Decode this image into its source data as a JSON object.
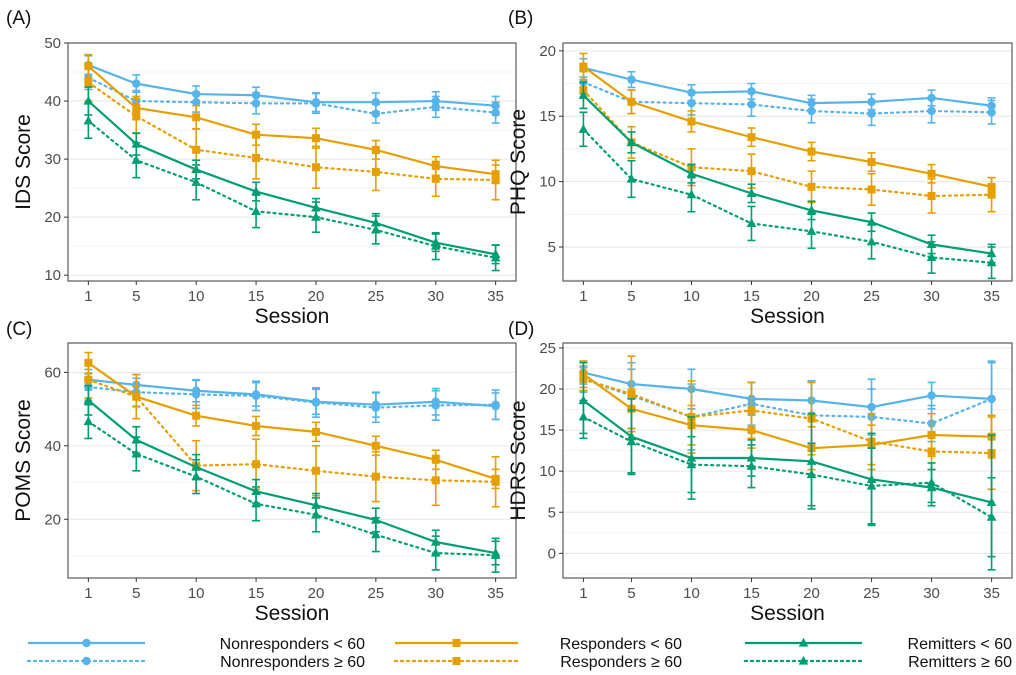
{
  "colors": {
    "Nonresponders": "#56B4E9",
    "Responders": "#E69F00",
    "Remitters": "#009E73"
  },
  "legend": [
    {
      "label": "Nonresponders < 60",
      "group": "Nonresponders",
      "style": "solid",
      "marker": "circle"
    },
    {
      "label": "Nonresponders ≥ 60",
      "group": "Nonresponders",
      "style": "dotted",
      "marker": "circle"
    },
    {
      "label": "Responders < 60",
      "group": "Responders",
      "style": "solid",
      "marker": "square"
    },
    {
      "label": "Responders ≥ 60",
      "group": "Responders",
      "style": "dotted",
      "marker": "square"
    },
    {
      "label": "Remitters < 60",
      "group": "Remitters",
      "style": "solid",
      "marker": "triangle"
    },
    {
      "label": "Remitters ≥ 60",
      "group": "Remitters",
      "style": "dotted",
      "marker": "triangle"
    }
  ],
  "chart_data": [
    {
      "type": "line",
      "panel": "(A)",
      "xlabel": "Session",
      "ylabel": "IDS Score",
      "x": [
        1,
        5,
        10,
        15,
        20,
        25,
        30,
        35
      ],
      "ylim": [
        9,
        50
      ],
      "yticks": [
        10,
        20,
        30,
        40,
        50
      ],
      "grid": true,
      "series": [
        {
          "name": "Nonresponders < 60",
          "values": [
            46.2,
            43.0,
            41.2,
            41.0,
            39.8,
            39.8,
            40.0,
            39.2
          ],
          "err": [
            1.6,
            1.5,
            1.4,
            1.4,
            1.6,
            1.6,
            1.6,
            1.6
          ]
        },
        {
          "name": "Nonresponders ≥ 60",
          "values": [
            44.0,
            40.0,
            39.8,
            39.6,
            39.6,
            37.8,
            39.0,
            38.0
          ],
          "err": [
            2.0,
            1.8,
            1.7,
            1.8,
            1.7,
            1.6,
            1.8,
            1.8
          ]
        },
        {
          "name": "Responders < 60",
          "values": [
            46.0,
            38.8,
            37.2,
            34.2,
            33.6,
            31.6,
            28.8,
            27.4
          ],
          "err": [
            2.0,
            2.0,
            2.0,
            1.8,
            1.7,
            1.6,
            1.6,
            1.6
          ]
        },
        {
          "name": "Responders ≥ 60",
          "values": [
            43.2,
            37.4,
            31.6,
            30.2,
            28.6,
            27.8,
            26.6,
            26.4
          ],
          "err": [
            3.2,
            3.0,
            3.6,
            3.6,
            3.6,
            3.2,
            3.0,
            3.4
          ]
        },
        {
          "name": "Remitters < 60",
          "values": [
            40.0,
            32.6,
            28.2,
            24.4,
            21.6,
            19.0,
            15.6,
            13.6
          ],
          "err": [
            2.4,
            1.9,
            1.6,
            1.6,
            1.6,
            1.6,
            1.5,
            1.6
          ]
        },
        {
          "name": "Remitters ≥ 60",
          "values": [
            36.6,
            29.8,
            26.0,
            21.0,
            20.0,
            17.8,
            15.0,
            13.0
          ],
          "err": [
            3.0,
            3.0,
            3.0,
            2.8,
            2.6,
            2.4,
            2.3,
            2.2
          ]
        }
      ]
    },
    {
      "type": "line",
      "panel": "(B)",
      "xlabel": "Session",
      "ylabel": "PHQ Score",
      "x": [
        1,
        5,
        10,
        15,
        20,
        25,
        30,
        35
      ],
      "ylim": [
        2.4,
        20.6
      ],
      "yticks": [
        5,
        10,
        15,
        20
      ],
      "grid": true,
      "series": [
        {
          "name": "Nonresponders < 60",
          "values": [
            18.7,
            17.8,
            16.8,
            16.9,
            16.0,
            16.1,
            16.4,
            15.8
          ],
          "err": [
            0.7,
            0.6,
            0.6,
            0.6,
            0.6,
            0.6,
            0.6,
            0.6
          ]
        },
        {
          "name": "Nonresponders ≥ 60",
          "values": [
            17.6,
            16.1,
            16.0,
            15.9,
            15.4,
            15.2,
            15.4,
            15.3
          ],
          "err": [
            0.9,
            0.9,
            0.9,
            0.9,
            0.9,
            0.9,
            0.9,
            0.9
          ]
        },
        {
          "name": "Responders < 60",
          "values": [
            18.8,
            16.1,
            14.6,
            13.4,
            12.3,
            11.5,
            10.6,
            9.6
          ],
          "err": [
            1.0,
            0.9,
            0.8,
            0.7,
            0.7,
            0.7,
            0.7,
            0.7
          ]
        },
        {
          "name": "Responders ≥ 60",
          "values": [
            17.0,
            13.0,
            11.1,
            10.8,
            9.6,
            9.4,
            8.9,
            9.0
          ],
          "err": [
            1.4,
            1.2,
            1.4,
            1.3,
            1.2,
            1.2,
            1.3,
            1.3
          ]
        },
        {
          "name": "Remitters < 60",
          "values": [
            16.6,
            13.0,
            10.6,
            9.1,
            7.8,
            6.9,
            5.2,
            4.5
          ],
          "err": [
            1.0,
            0.8,
            0.7,
            0.7,
            0.7,
            0.7,
            0.7,
            0.7
          ]
        },
        {
          "name": "Remitters ≥ 60",
          "values": [
            14.0,
            10.2,
            9.0,
            6.8,
            6.2,
            5.4,
            4.2,
            3.8
          ],
          "err": [
            1.3,
            1.4,
            1.3,
            1.3,
            1.3,
            1.3,
            1.2,
            1.2
          ]
        }
      ]
    },
    {
      "type": "line",
      "panel": "(C)",
      "xlabel": "Session",
      "ylabel": "POMS Score",
      "x": [
        1,
        5,
        10,
        15,
        20,
        25,
        30,
        35
      ],
      "ylim": [
        4,
        68
      ],
      "yticks": [
        20,
        40,
        60
      ],
      "grid": true,
      "series": [
        {
          "name": "Nonresponders < 60",
          "values": [
            58.0,
            56.6,
            55.0,
            54.0,
            52.0,
            51.2,
            52.0,
            50.8
          ],
          "err": [
            2.8,
            2.8,
            3.0,
            3.2,
            3.4,
            3.4,
            3.6,
            3.6
          ]
        },
        {
          "name": "Nonresponders ≥ 60",
          "values": [
            56.0,
            54.6,
            54.0,
            53.6,
            51.8,
            50.4,
            51.0,
            51.2
          ],
          "err": [
            3.6,
            3.8,
            3.8,
            4.0,
            4.0,
            4.0,
            4.0,
            4.0
          ]
        },
        {
          "name": "Responders < 60",
          "values": [
            62.6,
            53.4,
            48.2,
            45.4,
            43.8,
            40.0,
            36.2,
            31.0
          ],
          "err": [
            2.8,
            2.8,
            2.8,
            2.6,
            2.6,
            2.6,
            2.6,
            2.6
          ]
        },
        {
          "name": "Responders ≥ 60",
          "values": [
            58.0,
            53.4,
            34.6,
            35.0,
            33.2,
            31.6,
            30.6,
            30.2
          ],
          "err": [
            5.0,
            6.0,
            6.8,
            6.8,
            6.8,
            6.8,
            6.8,
            6.8
          ]
        },
        {
          "name": "Remitters < 60",
          "values": [
            52.4,
            41.6,
            34.2,
            27.6,
            23.8,
            19.8,
            13.8,
            10.8
          ],
          "err": [
            4.0,
            3.6,
            3.4,
            3.2,
            3.2,
            3.2,
            3.2,
            3.2
          ]
        },
        {
          "name": "Remitters ≥ 60",
          "values": [
            46.6,
            37.8,
            31.6,
            24.2,
            21.2,
            15.8,
            10.8,
            10.2
          ],
          "err": [
            4.6,
            4.6,
            4.6,
            4.6,
            4.6,
            4.6,
            4.6,
            4.6
          ]
        }
      ]
    },
    {
      "type": "line",
      "panel": "(D)",
      "xlabel": "Session",
      "ylabel": "HDRS Score",
      "x": [
        1,
        5,
        10,
        15,
        20,
        25,
        30,
        35
      ],
      "ylim": [
        -3,
        25.6
      ],
      "yticks": [
        0,
        5,
        10,
        15,
        20,
        25
      ],
      "grid": true,
      "series": [
        {
          "name": "Nonresponders < 60",
          "values": [
            22.0,
            20.6,
            20.0,
            18.8,
            18.6,
            17.8,
            19.2,
            18.8
          ],
          "err": [
            1.4,
            1.8,
            2.4,
            2.0,
            2.4,
            3.4,
            1.6,
            4.4
          ]
        },
        {
          "name": "Nonresponders ≥ 60",
          "values": [
            21.2,
            19.2,
            16.6,
            18.2,
            16.8,
            16.6,
            15.8,
            18.8
          ],
          "err": [
            1.6,
            4.0,
            4.0,
            2.6,
            4.0,
            3.4,
            2.2,
            4.6
          ]
        },
        {
          "name": "Responders < 60",
          "values": [
            21.8,
            17.6,
            15.6,
            15.0,
            12.8,
            13.2,
            14.4,
            14.2
          ],
          "err": [
            1.6,
            2.4,
            2.4,
            2.2,
            2.6,
            2.4,
            2.6,
            2.6
          ]
        },
        {
          "name": "Responders ≥ 60",
          "values": [
            21.2,
            19.4,
            16.6,
            17.4,
            16.4,
            13.6,
            12.4,
            12.2
          ],
          "err": [
            1.4,
            4.6,
            4.4,
            3.4,
            4.4,
            3.4,
            2.2,
            4.4
          ]
        },
        {
          "name": "Remitters < 60",
          "values": [
            18.6,
            14.2,
            11.6,
            11.6,
            11.2,
            9.0,
            8.0,
            6.2
          ],
          "err": [
            4.6,
            4.6,
            5.0,
            2.2,
            5.8,
            5.6,
            2.2,
            8.2
          ]
        },
        {
          "name": "Remitters ≥ 60",
          "values": [
            16.6,
            13.6,
            10.8,
            10.6,
            9.6,
            8.2,
            8.6,
            4.4
          ],
          "err": [
            2.0,
            3.8,
            3.4,
            2.6,
            3.8,
            4.6,
            2.4,
            4.8
          ]
        }
      ]
    }
  ]
}
